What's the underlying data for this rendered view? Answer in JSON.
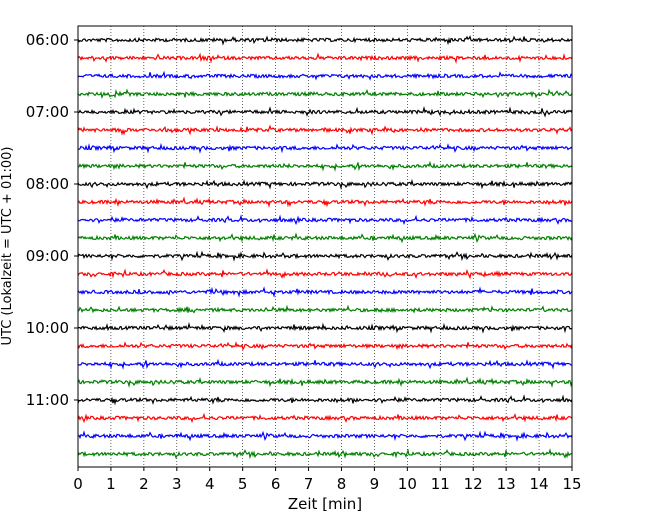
{
  "chart_data": {
    "type": "line",
    "title": "",
    "xlabel": "Zeit  [min]",
    "ylabel": "UTC (Lokalzeit = UTC + 01:00)",
    "xlim": [
      0,
      15
    ],
    "x_ticks": [
      0,
      1,
      2,
      3,
      4,
      5,
      6,
      7,
      8,
      9,
      10,
      11,
      12,
      13,
      14,
      15
    ],
    "y_tick_labels": [
      "06:00",
      "07:00",
      "08:00",
      "09:00",
      "10:00",
      "11:00"
    ],
    "trace_start_times": [
      "06:00",
      "06:15",
      "06:30",
      "06:45",
      "07:00",
      "07:15",
      "07:30",
      "07:45",
      "08:00",
      "08:15",
      "08:30",
      "08:45",
      "09:00",
      "09:15",
      "09:30",
      "09:45",
      "10:00",
      "10:15",
      "10:30",
      "10:45",
      "11:00",
      "11:15",
      "11:30",
      "11:45"
    ],
    "trace_colors": [
      "#000000",
      "#ff0000",
      "#0000ff",
      "#008000"
    ],
    "trace_duration_min": 15,
    "grid": "vertical dotted at each minute",
    "legend": "none"
  }
}
